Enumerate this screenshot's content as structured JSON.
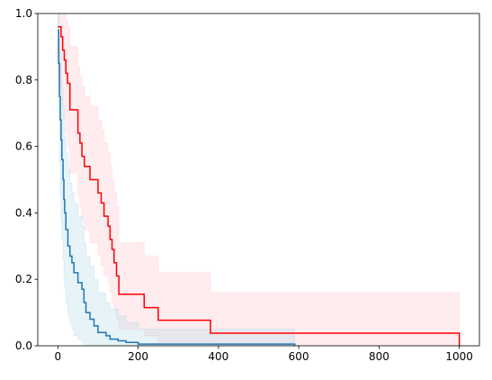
{
  "chart_data": {
    "type": "step",
    "xlim": [
      -50,
      1050
    ],
    "ylim": [
      0,
      1
    ],
    "xticks": [
      0,
      200,
      400,
      600,
      800,
      1000
    ],
    "yticks": [
      {
        "value": 0,
        "label": "0.0"
      },
      0.2,
      0.4,
      0.6,
      0.8,
      {
        "value": 1,
        "label": "1.0"
      }
    ],
    "series": [
      {
        "color": "#ff0000",
        "band_color": "#ffc0cb",
        "x": [
          0,
          8,
          12,
          16,
          20,
          24,
          30,
          50,
          55,
          60,
          66,
          80,
          100,
          108,
          115,
          125,
          130,
          135,
          140,
          146,
          152,
          215,
          250,
          380,
          1000
        ],
        "values": [
          0.96,
          0.93,
          0.89,
          0.86,
          0.82,
          0.79,
          0.71,
          0.64,
          0.61,
          0.57,
          0.54,
          0.5,
          0.46,
          0.43,
          0.39,
          0.36,
          0.32,
          0.29,
          0.25,
          0.21,
          0.155,
          0.115,
          0.077,
          0.038,
          0
        ],
        "upper": [
          1,
          1,
          1,
          1,
          0.98,
          0.96,
          0.9,
          0.84,
          0.81,
          0.78,
          0.75,
          0.72,
          0.68,
          0.65,
          0.61,
          0.58,
          0.54,
          0.5,
          0.46,
          0.42,
          0.31,
          0.27,
          0.22,
          0.16,
          0.16
        ],
        "lower": [
          0.8,
          0.76,
          0.72,
          0.68,
          0.64,
          0.6,
          0.52,
          0.45,
          0.42,
          0.38,
          0.35,
          0.31,
          0.27,
          0.24,
          0.21,
          0.19,
          0.16,
          0.13,
          0.11,
          0.08,
          0.05,
          0.03,
          0.01,
          0,
          0
        ]
      },
      {
        "color": "#1f77b4",
        "band_color": "#add8e6",
        "x": [
          0,
          2,
          4,
          6,
          8,
          10,
          13,
          15,
          17,
          20,
          25,
          30,
          35,
          40,
          50,
          60,
          65,
          70,
          80,
          90,
          100,
          120,
          130,
          150,
          170,
          200,
          590
        ],
        "values": [
          0.95,
          0.85,
          0.75,
          0.68,
          0.62,
          0.56,
          0.5,
          0.44,
          0.4,
          0.35,
          0.3,
          0.27,
          0.25,
          0.22,
          0.19,
          0.17,
          0.13,
          0.1,
          0.08,
          0.06,
          0.04,
          0.03,
          0.02,
          0.015,
          0.01,
          0.005,
          0
        ],
        "upper": [
          1,
          0.98,
          0.92,
          0.87,
          0.82,
          0.77,
          0.72,
          0.67,
          0.63,
          0.58,
          0.53,
          0.49,
          0.46,
          0.43,
          0.39,
          0.36,
          0.31,
          0.27,
          0.24,
          0.2,
          0.16,
          0.13,
          0.11,
          0.09,
          0.07,
          0.05,
          0.02
        ],
        "lower": [
          0.85,
          0.7,
          0.55,
          0.45,
          0.38,
          0.32,
          0.26,
          0.21,
          0.17,
          0.13,
          0.09,
          0.07,
          0.05,
          0.03,
          0.02,
          0.01,
          0,
          0,
          0,
          0,
          0,
          0,
          0,
          0,
          0,
          0,
          0
        ]
      }
    ]
  }
}
